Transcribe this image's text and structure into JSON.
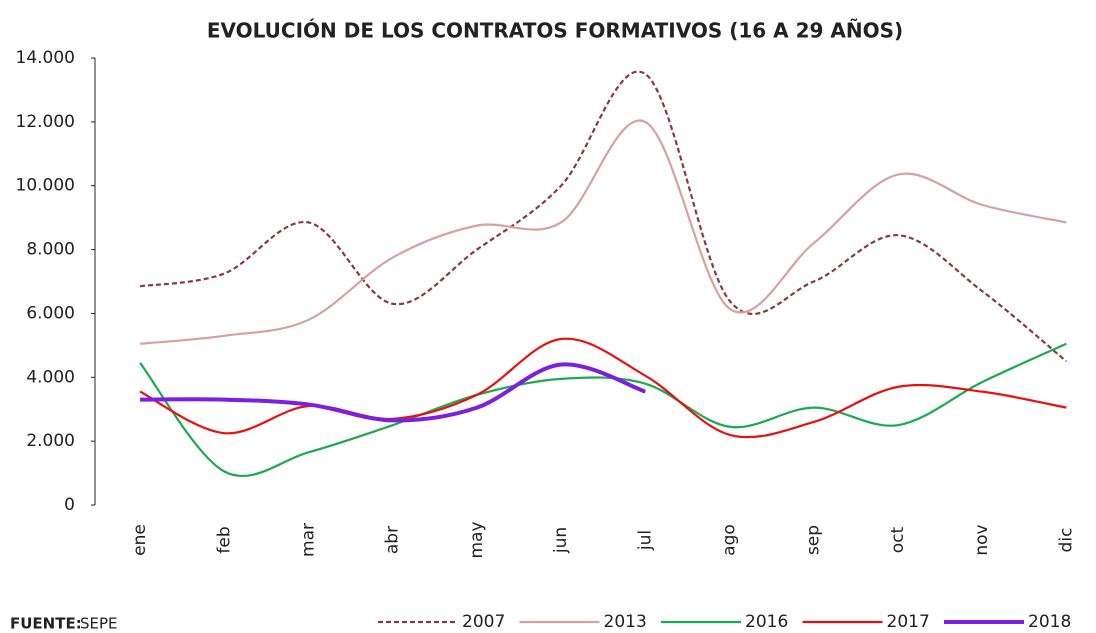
{
  "chart_data": {
    "type": "line",
    "title": "EVOLUCIÓN DE LOS CONTRATOS FORMATIVOS (16 A 29 AÑOS)",
    "categories": [
      "ene",
      "feb",
      "mar",
      "abr",
      "may",
      "jun",
      "jul",
      "ago",
      "sep",
      "oct",
      "nov",
      "dic"
    ],
    "series": [
      {
        "name": "2007",
        "color": "#8b3a3a",
        "dashed": true,
        "values": [
          6850,
          7250,
          8850,
          6300,
          8000,
          10000,
          13500,
          6400,
          7000,
          8450,
          6700,
          4500
        ]
      },
      {
        "name": "2013",
        "color": "#d9a0a0",
        "values": [
          5050,
          5300,
          5800,
          7750,
          8750,
          8850,
          12000,
          6150,
          8200,
          10350,
          9400,
          8850
        ]
      },
      {
        "name": "2016",
        "color": "#1aaa50",
        "values": [
          4450,
          1050,
          1650,
          2500,
          3450,
          3950,
          3800,
          2450,
          3050,
          2500,
          3850,
          5050
        ]
      },
      {
        "name": "2017",
        "color": "#e81010",
        "values": [
          3550,
          2250,
          3100,
          2700,
          3450,
          5200,
          4050,
          2200,
          2600,
          3700,
          3550,
          3050
        ]
      },
      {
        "name": "2018",
        "color": "#7b1fe0",
        "thick": true,
        "values": [
          3300,
          3300,
          3150,
          2650,
          3050,
          4400,
          3550,
          null,
          null,
          null,
          null,
          null
        ]
      }
    ],
    "ylim": [
      0,
      14000
    ],
    "yticks": [
      0,
      {
        "value": 2000,
        "label": "2.000"
      },
      {
        "value": 4000,
        "label": "4.000"
      },
      {
        "value": 6000,
        "label": "6.000"
      },
      {
        "value": 8000,
        "label": "8.000"
      },
      {
        "value": 10000,
        "label": "10.000"
      },
      {
        "value": 12000,
        "label": "12.000"
      },
      {
        "value": 14000,
        "label": "14.000"
      }
    ],
    "grid": false,
    "legend": "bottom",
    "source_label": "FUENTE:",
    "source": "SEPE"
  }
}
